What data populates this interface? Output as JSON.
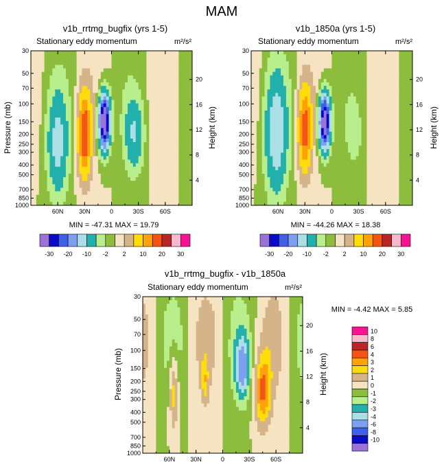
{
  "page_title": "MAM",
  "colors": {
    "map_a": [
      "#9b72d8",
      "#0a0ac8",
      "#3f60e6",
      "#7e9ff0",
      "#abdfe8",
      "#23b0ad",
      "#b8ef8c",
      "#8dbd3c",
      "#f5e3c2",
      "#d5b48a",
      "#ffdd0a",
      "#ffa10a",
      "#f45514",
      "#b82626",
      "#f9b9cc",
      "#f71494"
    ],
    "map_b": [
      "#9b72d8",
      "#0a0ac8",
      "#3f60e6",
      "#7e9ff0",
      "#abdfe8",
      "#23b0ad",
      "#b8ef8c",
      "#8dbd3c",
      "#f5e3c2",
      "#d5b48a",
      "#ffdd0a",
      "#ffa10a",
      "#f45514",
      "#b82626",
      "#f9b9cc",
      "#f71494"
    ]
  },
  "colorbar_a_labels": [
    "-30",
    "-20",
    "-10",
    "-2",
    "2",
    "10",
    "20",
    "30"
  ],
  "colorbar_b_labels": [
    "10",
    "8",
    "6",
    "4",
    "3",
    "2",
    "1",
    "0",
    "-1",
    "-2",
    "-3",
    "-4",
    "-6",
    "-8",
    "-10"
  ],
  "chart_data": [
    {
      "type": "heatmap",
      "title": "v1b_rrtmg_bugfix (yrs 1-5)",
      "subtitle": "Stationary eddy momentum",
      "units": "m²/s²",
      "xlabel": "",
      "ylabel": "Pressure (mb)",
      "ylabel_right": "Height (km)",
      "x_ticks": [
        "60N",
        "30N",
        "0",
        "30S",
        "60S"
      ],
      "y_ticks": [
        "30",
        "50",
        "70",
        "100",
        "150",
        "200",
        "250",
        "300",
        "400",
        "500",
        "700",
        "850",
        "1000"
      ],
      "y_right_ticks": [
        "20",
        "16",
        "12",
        "8",
        "4"
      ],
      "stats": "MIN = -47.31   MAX =  19.79",
      "blobs": [
        {
          "lat": 60,
          "p": 250,
          "rx": 11,
          "rp": 1.1,
          "v": -12
        },
        {
          "lat": 30,
          "p": 200,
          "rx": 7,
          "rp": 0.9,
          "v": 20
        },
        {
          "lat": 8,
          "p": 150,
          "rx": 6,
          "rp": 0.6,
          "v": -40
        },
        {
          "lat": -25,
          "p": 200,
          "rx": 10,
          "rp": 0.8,
          "v": -10
        }
      ]
    },
    {
      "type": "heatmap",
      "title": "v1b_1850a (yrs 1-5)",
      "subtitle": "Stationary eddy momentum",
      "units": "m²/s²",
      "ylabel": "",
      "ylabel_right": "Height (km)",
      "x_ticks": [
        "60N",
        "30N",
        "0",
        "30S",
        "60S"
      ],
      "y_ticks": [
        "30",
        "50",
        "70",
        "100",
        "150",
        "200",
        "250",
        "300",
        "400",
        "500",
        "700",
        "850",
        "1000"
      ],
      "y_right_ticks": [
        "20",
        "16",
        "12",
        "8",
        "4"
      ],
      "stats": "MIN = -44.26   MAX =  18.38",
      "blobs": [
        {
          "lat": 62,
          "p": 200,
          "rx": 12,
          "rp": 1.3,
          "v": -14
        },
        {
          "lat": 30,
          "p": 180,
          "rx": 7,
          "rp": 0.9,
          "v": 18
        },
        {
          "lat": 8,
          "p": 150,
          "rx": 6,
          "rp": 0.6,
          "v": -38
        },
        {
          "lat": -25,
          "p": 200,
          "rx": 9,
          "rp": 0.7,
          "v": -3
        }
      ]
    },
    {
      "type": "heatmap",
      "title": "v1b_rrtmg_bugfix - v1b_1850a",
      "subtitle": "Stationary eddy momentum",
      "units": "m²/s²",
      "ylabel": "Pressure (mb)",
      "ylabel_right": "Height (km)",
      "x_ticks": [
        "60N",
        "30N",
        "0",
        "30S",
        "60S"
      ],
      "y_ticks": [
        "30",
        "50",
        "70",
        "100",
        "150",
        "200",
        "250",
        "300",
        "400",
        "500",
        "700",
        "850",
        "1000"
      ],
      "y_right_ticks": [
        "20",
        "16",
        "12",
        "8",
        "4"
      ],
      "stats": "MIN =  -4.42   MAX =   5.85",
      "blobs": [
        {
          "lat": 55,
          "p": 250,
          "rx": 5,
          "rp": 0.9,
          "v": 3
        },
        {
          "lat": 20,
          "p": 200,
          "rx": 4,
          "rp": 0.5,
          "v": 2
        },
        {
          "lat": -22,
          "p": 150,
          "rx": 8,
          "rp": 0.7,
          "v": -4
        },
        {
          "lat": -45,
          "p": 250,
          "rx": 9,
          "rp": 0.8,
          "v": 4
        }
      ]
    }
  ]
}
